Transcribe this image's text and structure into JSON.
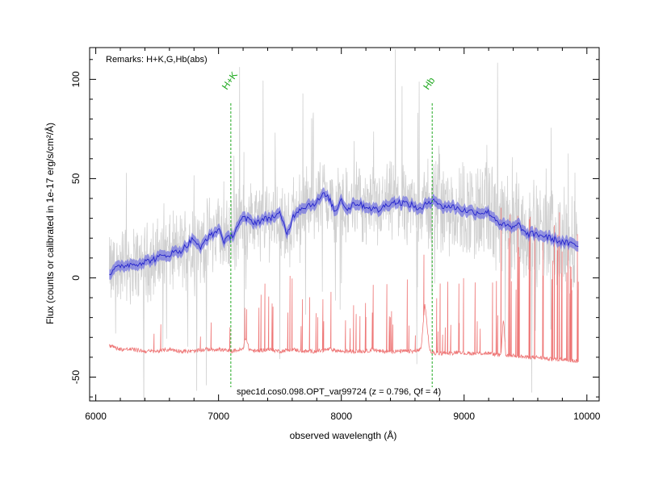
{
  "chart_data": {
    "type": "line",
    "xlabel": "observed wavelength (Å)",
    "ylabel": "Flux (counts or calibrated in 1e-17 erg/s/cm²/Å)",
    "xlim": [
      5950,
      10100
    ],
    "ylim": [
      -62,
      116
    ],
    "x_ticks": [
      6000,
      7000,
      8000,
      9000,
      10000
    ],
    "x_tick_labels": [
      "6000",
      "7000",
      "8000",
      "9000",
      "10000"
    ],
    "y_ticks": [
      -50,
      0,
      50,
      100
    ],
    "y_tick_labels": [
      "-50",
      "0",
      "50",
      "100"
    ],
    "grid": false,
    "remarks": "Remarks: H+K,G,Hb(abs)",
    "caption": "spec1d.cos0.098.OPT_var99724 (z = 0.796, Qf = 4)",
    "colors": {
      "raw": "#c8c8c8",
      "smoothed_line": "#2222cc",
      "smoothed_band": "#7777e0",
      "sky": "#ee7777",
      "features": "#22aa22"
    },
    "features": [
      {
        "label": "H+K",
        "wavelength": 7100
      },
      {
        "label": "Hb",
        "wavelength": 8740
      }
    ],
    "series": [
      {
        "type": "line",
        "x": [
          6110,
          6200,
          6300,
          6400,
          6500,
          6600,
          6700,
          6800,
          6850,
          6900,
          6960,
          7000,
          7050,
          7080,
          7120,
          7160,
          7200,
          7300,
          7400,
          7500,
          7560,
          7600,
          7640,
          7700,
          7800,
          7850,
          7900,
          7950,
          8000,
          8050,
          8100,
          8200,
          8300,
          8400,
          8500,
          8600,
          8650,
          8700,
          8760,
          8800,
          8900,
          9000,
          9100,
          9200,
          9300,
          9400,
          9450,
          9500,
          9600,
          9700,
          9800,
          9930
        ],
        "y": [
          2,
          6,
          7,
          8,
          10,
          12,
          14,
          20,
          14,
          20,
          22,
          25,
          18,
          20,
          22,
          27,
          30,
          28,
          30,
          32,
          22,
          30,
          34,
          36,
          38,
          42,
          40,
          33,
          40,
          34,
          38,
          36,
          34,
          38,
          38,
          36,
          34,
          38,
          40,
          36,
          36,
          34,
          33,
          33,
          27,
          25,
          27,
          22,
          22,
          20,
          18,
          16
        ]
      },
      {
        "type": "line",
        "x": [
          6110,
          6200,
          6300,
          6400,
          6500,
          6600,
          6700,
          6800,
          6900,
          7000,
          7100,
          7200,
          7220,
          7250,
          7300,
          7400,
          7500,
          7600,
          7700,
          7800,
          7900,
          8000,
          8100,
          8200,
          8260,
          8300,
          8400,
          8500,
          8600,
          8650,
          8680,
          8720,
          8760,
          8800,
          8900,
          8960,
          9000,
          9100,
          9200,
          9300,
          9320,
          9340,
          9400,
          9500,
          9600,
          9700,
          9800,
          9930
        ],
        "y": [
          -34,
          -36,
          -36,
          -37,
          -37,
          -36,
          -37,
          -37,
          -36,
          -36,
          -37,
          -36,
          -30,
          -36,
          -37,
          -36,
          -37,
          -36,
          -37,
          -37,
          -36,
          -37,
          -37,
          -37,
          -36,
          -37,
          -37,
          -37,
          -37,
          -36,
          -13,
          -37,
          -38,
          -38,
          -38,
          -37,
          -38,
          -38,
          -38,
          -39,
          -20,
          -39,
          -39,
          -40,
          -40,
          -41,
          -41,
          -42
        ]
      }
    ]
  }
}
